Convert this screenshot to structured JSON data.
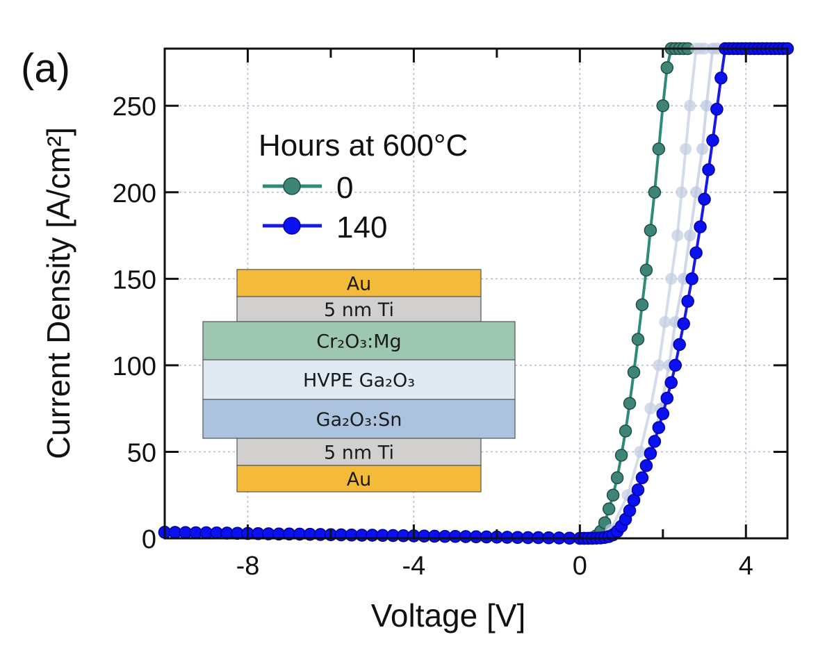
{
  "chart_data": {
    "type": "line",
    "panel_label": "(a)",
    "xlabel": "Voltage [V]",
    "ylabel": "Current Density [A/cm²]",
    "xlim": [
      -10,
      5
    ],
    "ylim": [
      0,
      283
    ],
    "xticks": [
      -8,
      -4,
      0,
      4
    ],
    "yticks": [
      0,
      50,
      100,
      150,
      200,
      250
    ],
    "grid": true,
    "legend": {
      "title": "Hours at 600°C",
      "placement": "top-left"
    },
    "series": [
      {
        "name": "0",
        "color": "#2f8a78",
        "marker_fill": "#3f8577",
        "x": [
          -10,
          -9.75,
          -9.5,
          -9.25,
          -9,
          -8.75,
          -8.5,
          -8.25,
          -8,
          -7.75,
          -7.5,
          -7.25,
          -7,
          -6.75,
          -6.5,
          -6.25,
          -6,
          -5.75,
          -5.5,
          -5.25,
          -5,
          -4.75,
          -4.5,
          -4.25,
          -4,
          -3.75,
          -3.5,
          -3.25,
          -3,
          -2.75,
          -2.5,
          -2.25,
          -2,
          -1.75,
          -1.5,
          -1.25,
          -1,
          -0.75,
          -0.5,
          -0.25,
          0,
          0.1,
          0.2,
          0.3,
          0.4,
          0.5,
          0.6,
          0.7,
          0.8,
          0.9,
          1.0,
          1.1,
          1.2,
          1.3,
          1.4,
          1.5,
          1.6,
          1.7,
          1.8,
          1.9,
          2.0,
          2.1,
          2.2,
          2.3,
          2.4,
          2.5,
          2.6
        ],
        "y": [
          3.5,
          3.4,
          3.3,
          3.2,
          3.2,
          3.1,
          3.0,
          2.9,
          2.8,
          2.7,
          2.6,
          2.5,
          2.5,
          2.4,
          2.3,
          2.2,
          2.1,
          2.0,
          1.9,
          1.8,
          1.8,
          1.7,
          1.6,
          1.5,
          1.4,
          1.3,
          1.2,
          1.1,
          1.1,
          1.0,
          0.9,
          0.8,
          0.7,
          0.6,
          0.5,
          0.4,
          0.4,
          0.3,
          0.2,
          0.1,
          0,
          0,
          0,
          0.3,
          1.5,
          4,
          9,
          17,
          25,
          35,
          48,
          62,
          78,
          96,
          115,
          135,
          155,
          178,
          200,
          225,
          250,
          272,
          283,
          283,
          283,
          283,
          283
        ]
      },
      {
        "name": "",
        "color": "#c9d3e6",
        "marker_fill": "#c4cfe2",
        "x": [
          0.75,
          1.15,
          1.45,
          1.7,
          1.9,
          2.05,
          2.2,
          2.35,
          2.45,
          2.55,
          2.65,
          2.8,
          2.9,
          3.0
        ],
        "y": [
          5,
          25,
          50,
          75,
          100,
          125,
          150,
          175,
          200,
          225,
          250,
          283,
          283,
          283
        ]
      },
      {
        "name": "",
        "color": "#c3cde4",
        "marker_fill": "#bcc8e2",
        "x": [
          0.85,
          1.35,
          1.7,
          1.95,
          2.15,
          2.3,
          2.5,
          2.65,
          2.8,
          2.95,
          3.05,
          3.2,
          3.3
        ],
        "y": [
          5,
          25,
          50,
          75,
          100,
          125,
          150,
          175,
          200,
          225,
          250,
          283,
          283
        ]
      },
      {
        "name": "140",
        "color": "#1a1ae6",
        "marker_fill": "#0a10f0",
        "x": [
          -10,
          -9.75,
          -9.5,
          -9.25,
          -9,
          -8.75,
          -8.5,
          -8.25,
          -8,
          -7.75,
          -7.5,
          -7.25,
          -7,
          -6.75,
          -6.5,
          -6.25,
          -6,
          -5.75,
          -5.5,
          -5.25,
          -5,
          -4.75,
          -4.5,
          -4.25,
          -4,
          -3.75,
          -3.5,
          -3.25,
          -3,
          -2.75,
          -2.5,
          -2.25,
          -2,
          -1.75,
          -1.5,
          -1.25,
          -1,
          -0.75,
          -0.5,
          -0.25,
          0,
          0.1,
          0.2,
          0.3,
          0.4,
          0.5,
          0.6,
          0.7,
          0.8,
          0.9,
          1.0,
          1.1,
          1.2,
          1.3,
          1.4,
          1.5,
          1.6,
          1.7,
          1.8,
          1.9,
          2.0,
          2.1,
          2.2,
          2.3,
          2.4,
          2.5,
          2.6,
          2.7,
          2.8,
          2.9,
          3.0,
          3.1,
          3.2,
          3.3,
          3.4,
          3.5,
          3.6,
          3.7,
          3.8,
          3.9,
          4.0,
          4.1,
          4.2,
          4.3,
          4.4,
          4.5,
          4.6,
          4.7,
          4.8,
          4.9,
          5.0
        ],
        "y": [
          3.5,
          3.4,
          3.3,
          3.2,
          3.2,
          3.1,
          3.0,
          2.9,
          2.8,
          2.7,
          2.6,
          2.5,
          2.5,
          2.4,
          2.3,
          2.2,
          2.1,
          2.0,
          1.9,
          1.8,
          1.8,
          1.7,
          1.6,
          1.5,
          1.4,
          1.3,
          1.2,
          1.1,
          1.1,
          1.0,
          0.9,
          0.8,
          0.7,
          0.6,
          0.5,
          0.4,
          0.4,
          0.3,
          0.2,
          0.1,
          0,
          0,
          0,
          0,
          0.1,
          0.2,
          0.5,
          1,
          2,
          4,
          7,
          11,
          16,
          22,
          28,
          35,
          42,
          49,
          56,
          64,
          72,
          81,
          90,
          100,
          112,
          124,
          137,
          150,
          165,
          180,
          196,
          213,
          230,
          248,
          266,
          283,
          283,
          283,
          283,
          283,
          283,
          283,
          283,
          283,
          283,
          283,
          283,
          283,
          283,
          283,
          283
        ]
      }
    ]
  },
  "inset": {
    "layers": [
      {
        "label": "Au",
        "color": "#f4bb3a",
        "wide": false
      },
      {
        "label": "5 nm Ti",
        "color": "#d2cfcf",
        "wide": false
      },
      {
        "label": "Cr₂O₃:Mg",
        "color": "#9dc7b1",
        "wide": true
      },
      {
        "label": "HVPE Ga₂O₃",
        "color": "#dfeaf3",
        "wide": true
      },
      {
        "label": "Ga₂O₃:Sn",
        "color": "#abc3df",
        "wide": true
      },
      {
        "label": "5 nm Ti",
        "color": "#d2cfcf",
        "wide": false
      },
      {
        "label": "Au",
        "color": "#f4bb3a",
        "wide": false
      }
    ]
  }
}
